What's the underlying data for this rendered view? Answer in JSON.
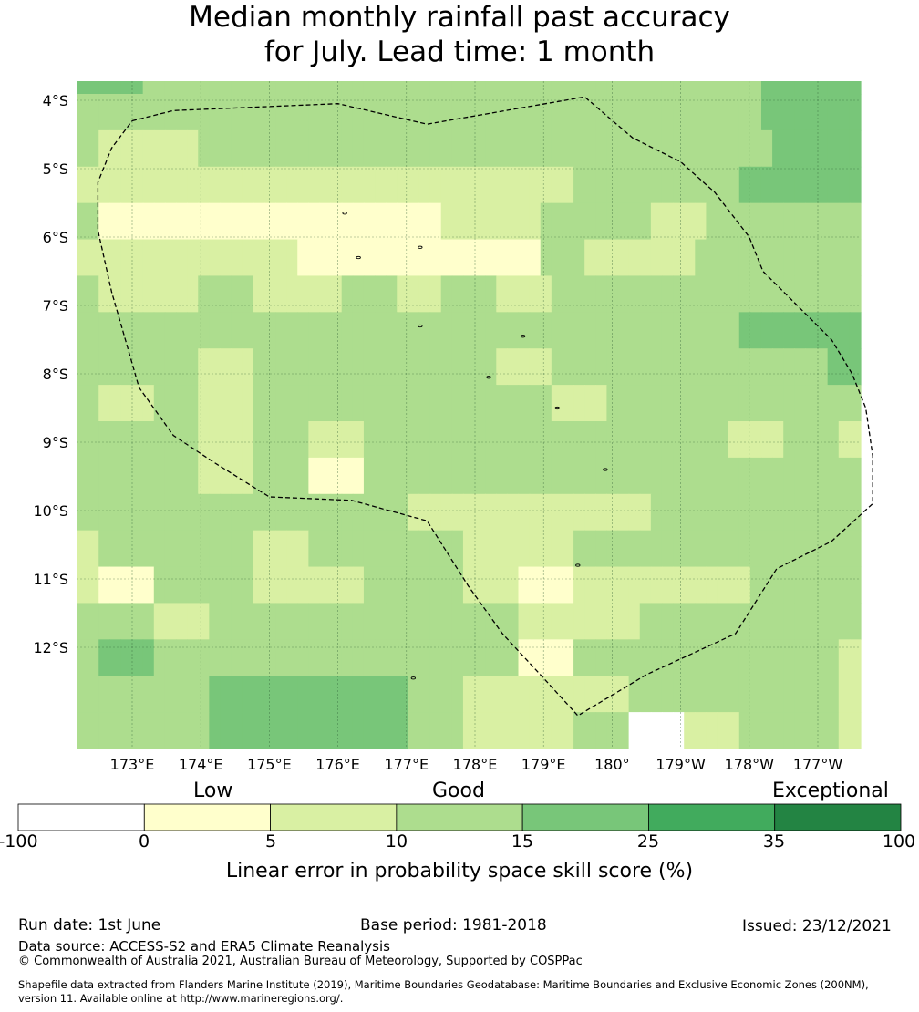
{
  "title": {
    "line1": "Median monthly rainfall past accuracy",
    "line2": "for July. Lead time: 1 month"
  },
  "map": {
    "lat_labels": [
      "4°S",
      "5°S",
      "6°S",
      "7°S",
      "8°S",
      "9°S",
      "10°S",
      "11°S",
      "12°S"
    ],
    "lon_labels": [
      "173°E",
      "174°E",
      "175°E",
      "176°E",
      "177°E",
      "178°E",
      "179°E",
      "180°",
      "179°W",
      "178°W",
      "177°W"
    ],
    "cell_levels": [
      [
        4,
        4,
        4,
        4,
        4,
        4,
        3,
        3,
        3,
        3,
        3,
        3,
        3,
        3,
        3,
        3,
        3,
        3,
        3,
        3,
        3,
        3,
        3,
        3,
        3,
        3,
        3,
        3,
        3,
        3,
        3,
        3,
        3,
        3,
        3,
        3,
        3,
        3,
        3,
        3,
        3,
        3,
        3,
        3,
        3,
        3,
        3,
        3,
        3,
        3,
        3,
        3,
        3,
        3,
        3,
        3,
        3,
        3,
        3,
        3,
        3,
        3,
        4,
        4,
        4,
        4,
        4,
        4,
        4,
        4,
        4
      ],
      [
        3,
        3,
        3,
        3,
        3,
        3,
        3,
        3,
        3,
        3,
        3,
        3,
        3,
        3,
        3,
        3,
        3,
        3,
        3,
        3,
        3,
        3,
        3,
        3,
        3,
        3,
        3,
        3,
        3,
        3,
        3,
        3,
        3,
        3,
        3,
        3,
        3,
        3,
        3,
        3,
        3,
        3,
        3,
        3,
        3,
        3,
        3,
        3,
        3,
        3,
        3,
        3,
        3,
        3,
        3,
        3,
        3,
        3,
        3,
        3,
        3,
        3,
        4,
        4,
        4,
        4,
        4,
        4,
        4,
        4,
        4
      ],
      [
        3,
        3,
        2,
        2,
        2,
        2,
        2,
        2,
        2,
        2,
        2,
        3,
        3,
        3,
        3,
        3,
        3,
        3,
        3,
        3,
        3,
        3,
        3,
        3,
        3,
        3,
        3,
        3,
        3,
        3,
        3,
        3,
        3,
        3,
        3,
        3,
        3,
        3,
        3,
        3,
        3,
        3,
        3,
        3,
        3,
        3,
        3,
        3,
        3,
        3,
        3,
        3,
        3,
        3,
        3,
        3,
        3,
        3,
        3,
        3,
        3,
        3,
        3,
        4,
        4,
        4,
        4,
        4,
        4,
        4,
        4
      ],
      [
        2,
        2,
        2,
        2,
        2,
        2,
        2,
        2,
        2,
        2,
        2,
        2,
        2,
        2,
        2,
        2,
        2,
        2,
        2,
        2,
        2,
        2,
        2,
        2,
        2,
        2,
        2,
        2,
        2,
        2,
        2,
        2,
        2,
        2,
        2,
        2,
        2,
        2,
        2,
        2,
        2,
        2,
        2,
        2,
        2,
        3,
        3,
        3,
        3,
        3,
        3,
        3,
        3,
        3,
        3,
        3,
        3,
        3,
        3,
        3,
        4,
        4,
        4,
        4,
        4,
        4,
        4,
        4,
        4,
        4,
        4
      ],
      [
        3,
        3,
        1,
        1,
        1,
        1,
        1,
        1,
        1,
        1,
        1,
        1,
        1,
        1,
        1,
        1,
        1,
        1,
        1,
        1,
        1,
        1,
        1,
        1,
        1,
        1,
        1,
        1,
        1,
        1,
        1,
        1,
        1,
        2,
        2,
        2,
        2,
        2,
        2,
        2,
        2,
        2,
        3,
        3,
        3,
        3,
        3,
        3,
        3,
        3,
        3,
        3,
        2,
        2,
        2,
        2,
        2,
        3,
        3,
        3,
        3,
        3,
        3,
        3,
        3,
        3,
        3,
        3,
        3,
        3,
        3
      ],
      [
        2,
        2,
        2,
        2,
        2,
        2,
        2,
        2,
        2,
        2,
        2,
        2,
        2,
        2,
        2,
        2,
        2,
        2,
        2,
        2,
        1,
        1,
        1,
        1,
        1,
        1,
        1,
        1,
        1,
        1,
        1,
        1,
        1,
        1,
        1,
        1,
        1,
        1,
        1,
        1,
        1,
        1,
        3,
        3,
        3,
        3,
        2,
        2,
        2,
        2,
        2,
        2,
        2,
        2,
        2,
        2,
        3,
        3,
        3,
        3,
        3,
        3,
        3,
        3,
        3,
        3,
        3,
        3,
        3,
        3,
        3
      ],
      [
        3,
        3,
        2,
        2,
        2,
        2,
        2,
        2,
        2,
        2,
        2,
        3,
        3,
        3,
        3,
        3,
        2,
        2,
        2,
        2,
        2,
        2,
        2,
        2,
        3,
        3,
        3,
        3,
        3,
        2,
        2,
        2,
        2,
        3,
        3,
        3,
        3,
        3,
        2,
        2,
        2,
        2,
        2,
        3,
        3,
        3,
        3,
        3,
        3,
        3,
        3,
        3,
        3,
        3,
        3,
        3,
        3,
        3,
        3,
        3,
        3,
        3,
        3,
        3,
        3,
        3,
        3,
        3,
        3,
        3,
        3
      ],
      [
        3,
        3,
        3,
        3,
        3,
        3,
        3,
        3,
        3,
        3,
        3,
        3,
        3,
        3,
        3,
        3,
        3,
        3,
        3,
        3,
        3,
        3,
        3,
        3,
        3,
        3,
        3,
        3,
        3,
        3,
        3,
        3,
        3,
        3,
        3,
        3,
        3,
        3,
        3,
        3,
        3,
        3,
        3,
        3,
        3,
        3,
        3,
        3,
        3,
        3,
        3,
        3,
        3,
        3,
        3,
        3,
        3,
        3,
        3,
        3,
        4,
        4,
        4,
        4,
        4,
        4,
        4,
        4,
        4,
        4,
        4
      ],
      [
        3,
        3,
        3,
        3,
        3,
        3,
        3,
        3,
        3,
        3,
        3,
        2,
        2,
        2,
        2,
        2,
        3,
        3,
        3,
        3,
        3,
        3,
        3,
        3,
        3,
        3,
        3,
        3,
        3,
        3,
        3,
        3,
        3,
        3,
        3,
        3,
        3,
        3,
        2,
        2,
        2,
        2,
        2,
        3,
        3,
        3,
        3,
        3,
        3,
        3,
        3,
        3,
        3,
        3,
        3,
        3,
        3,
        3,
        3,
        3,
        3,
        3,
        3,
        3,
        3,
        3,
        3,
        3,
        4,
        4,
        4
      ],
      [
        3,
        3,
        2,
        2,
        2,
        2,
        2,
        3,
        3,
        3,
        3,
        2,
        2,
        2,
        2,
        2,
        3,
        3,
        3,
        3,
        3,
        3,
        3,
        3,
        3,
        3,
        3,
        3,
        3,
        3,
        3,
        3,
        3,
        3,
        3,
        3,
        3,
        3,
        3,
        3,
        3,
        3,
        3,
        2,
        2,
        2,
        2,
        2,
        3,
        3,
        3,
        3,
        3,
        3,
        3,
        3,
        3,
        3,
        3,
        3,
        3,
        3,
        3,
        3,
        3,
        3,
        3,
        3,
        3,
        3,
        3
      ],
      [
        3,
        3,
        3,
        3,
        3,
        3,
        3,
        3,
        3,
        3,
        3,
        2,
        2,
        2,
        2,
        2,
        3,
        3,
        3,
        3,
        3,
        2,
        2,
        2,
        2,
        2,
        3,
        3,
        3,
        3,
        3,
        3,
        3,
        3,
        3,
        3,
        3,
        3,
        3,
        3,
        3,
        3,
        3,
        3,
        3,
        3,
        3,
        3,
        3,
        3,
        3,
        3,
        3,
        3,
        3,
        3,
        3,
        3,
        3,
        2,
        2,
        2,
        2,
        2,
        3,
        3,
        3,
        3,
        3,
        2,
        2
      ],
      [
        3,
        3,
        3,
        3,
        3,
        3,
        3,
        3,
        3,
        3,
        3,
        2,
        2,
        2,
        2,
        2,
        3,
        3,
        3,
        3,
        3,
        1,
        1,
        1,
        1,
        1,
        3,
        3,
        3,
        3,
        3,
        3,
        3,
        3,
        3,
        3,
        3,
        3,
        3,
        3,
        3,
        3,
        3,
        3,
        3,
        3,
        3,
        3,
        3,
        3,
        3,
        3,
        3,
        3,
        3,
        3,
        3,
        3,
        3,
        3,
        3,
        3,
        3,
        3,
        3,
        3,
        3,
        3,
        3,
        3,
        3
      ],
      [
        3,
        3,
        3,
        3,
        3,
        3,
        3,
        3,
        3,
        3,
        3,
        3,
        3,
        3,
        3,
        3,
        3,
        3,
        3,
        3,
        3,
        3,
        3,
        3,
        3,
        3,
        3,
        3,
        3,
        3,
        2,
        2,
        2,
        2,
        2,
        2,
        2,
        2,
        2,
        2,
        2,
        2,
        2,
        2,
        2,
        2,
        2,
        2,
        2,
        2,
        2,
        2,
        3,
        3,
        3,
        3,
        3,
        3,
        3,
        3,
        3,
        3,
        3,
        3,
        3,
        3,
        3,
        3,
        3,
        3,
        3
      ],
      [
        2,
        2,
        3,
        3,
        3,
        3,
        3,
        3,
        3,
        3,
        3,
        3,
        3,
        3,
        3,
        3,
        2,
        2,
        2,
        2,
        2,
        3,
        3,
        3,
        3,
        3,
        3,
        3,
        3,
        3,
        3,
        3,
        3,
        3,
        3,
        2,
        2,
        2,
        2,
        2,
        2,
        2,
        2,
        2,
        2,
        3,
        3,
        3,
        3,
        3,
        3,
        3,
        3,
        3,
        3,
        3,
        3,
        3,
        3,
        3,
        3,
        3,
        3,
        3,
        3,
        3,
        3,
        3,
        3,
        3,
        3
      ],
      [
        2,
        2,
        1,
        1,
        1,
        1,
        1,
        3,
        3,
        3,
        3,
        3,
        3,
        3,
        3,
        3,
        2,
        2,
        2,
        2,
        2,
        2,
        2,
        2,
        2,
        2,
        3,
        3,
        3,
        3,
        3,
        3,
        3,
        3,
        3,
        2,
        2,
        2,
        2,
        2,
        1,
        1,
        1,
        1,
        1,
        2,
        2,
        2,
        2,
        2,
        2,
        2,
        2,
        2,
        2,
        2,
        2,
        2,
        2,
        2,
        2,
        3,
        3,
        3,
        3,
        3,
        3,
        3,
        3,
        3,
        3
      ],
      [
        3,
        3,
        3,
        3,
        3,
        3,
        3,
        2,
        2,
        2,
        2,
        2,
        3,
        3,
        3,
        3,
        3,
        3,
        3,
        3,
        3,
        3,
        3,
        3,
        3,
        3,
        3,
        3,
        3,
        3,
        3,
        3,
        3,
        3,
        3,
        3,
        3,
        3,
        3,
        3,
        2,
        2,
        2,
        2,
        2,
        2,
        2,
        2,
        2,
        2,
        2,
        3,
        3,
        3,
        3,
        3,
        3,
        3,
        3,
        3,
        3,
        3,
        3,
        3,
        3,
        3,
        3,
        3,
        3,
        3,
        3
      ],
      [
        3,
        3,
        4,
        4,
        4,
        4,
        4,
        3,
        3,
        3,
        3,
        3,
        3,
        3,
        3,
        3,
        3,
        3,
        3,
        3,
        3,
        3,
        3,
        3,
        3,
        3,
        3,
        3,
        3,
        3,
        3,
        3,
        3,
        3,
        3,
        3,
        3,
        3,
        3,
        3,
        1,
        1,
        1,
        1,
        1,
        3,
        3,
        3,
        3,
        3,
        3,
        3,
        3,
        3,
        3,
        3,
        3,
        3,
        3,
        3,
        3,
        3,
        3,
        3,
        3,
        3,
        3,
        3,
        3,
        2,
        2
      ],
      [
        3,
        3,
        3,
        3,
        3,
        3,
        3,
        3,
        3,
        3,
        3,
        3,
        4,
        4,
        4,
        4,
        4,
        4,
        4,
        4,
        4,
        4,
        4,
        4,
        4,
        4,
        4,
        4,
        4,
        4,
        3,
        3,
        3,
        3,
        3,
        2,
        2,
        2,
        2,
        2,
        2,
        2,
        2,
        2,
        2,
        2,
        2,
        2,
        2,
        2,
        3,
        3,
        3,
        3,
        3,
        3,
        3,
        3,
        3,
        3,
        3,
        3,
        3,
        3,
        3,
        3,
        3,
        3,
        3,
        2,
        2
      ],
      [
        3,
        3,
        3,
        3,
        3,
        3,
        3,
        3,
        3,
        3,
        3,
        3,
        4,
        4,
        4,
        4,
        4,
        4,
        4,
        4,
        4,
        4,
        4,
        4,
        4,
        4,
        4,
        4,
        4,
        4,
        3,
        3,
        3,
        3,
        3,
        2,
        2,
        2,
        2,
        2,
        2,
        2,
        2,
        2,
        2,
        3,
        3,
        3,
        3,
        3,
        0,
        0,
        0,
        0,
        0,
        2,
        2,
        2,
        2,
        2,
        3,
        3,
        3,
        3,
        3,
        3,
        3,
        3,
        3,
        2,
        2
      ]
    ],
    "eez_boundary": [
      [
        173.0,
        -4.3
      ],
      [
        173.6,
        -4.15
      ],
      [
        176.0,
        -4.05
      ],
      [
        177.3,
        -4.35
      ],
      [
        179.6,
        -3.95
      ],
      [
        180.3,
        -4.55
      ],
      [
        181.0,
        -4.9
      ],
      [
        181.5,
        -5.35
      ],
      [
        182.0,
        -6.0
      ],
      [
        182.2,
        -6.5
      ],
      [
        182.7,
        -7.0
      ],
      [
        183.2,
        -7.5
      ],
      [
        183.5,
        -8.0
      ],
      [
        183.7,
        -8.5
      ],
      [
        183.8,
        -9.2
      ],
      [
        183.8,
        -9.9
      ],
      [
        183.2,
        -10.45
      ],
      [
        182.4,
        -10.85
      ],
      [
        181.8,
        -11.8
      ],
      [
        180.5,
        -12.4
      ],
      [
        179.5,
        -13.0
      ],
      [
        179.0,
        -12.45
      ],
      [
        178.4,
        -11.8
      ],
      [
        177.9,
        -11.1
      ],
      [
        177.3,
        -10.15
      ],
      [
        176.2,
        -9.85
      ],
      [
        175.0,
        -9.8
      ],
      [
        174.2,
        -9.3
      ],
      [
        173.6,
        -8.9
      ],
      [
        173.1,
        -8.2
      ],
      [
        172.9,
        -7.5
      ],
      [
        172.7,
        -6.8
      ],
      [
        172.5,
        -5.9
      ],
      [
        172.5,
        -5.2
      ],
      [
        172.7,
        -4.7
      ],
      [
        173.0,
        -4.3
      ]
    ],
    "islands": [
      [
        176.1,
        -5.65
      ],
      [
        176.3,
        -6.3
      ],
      [
        177.2,
        -6.15
      ],
      [
        177.2,
        -7.3
      ],
      [
        178.2,
        -8.05
      ],
      [
        178.7,
        -7.45
      ],
      [
        179.2,
        -8.5
      ],
      [
        179.9,
        -9.4
      ],
      [
        179.5,
        -10.8
      ],
      [
        177.1,
        -12.45
      ]
    ]
  },
  "colorbar": {
    "categories": [
      "Low",
      "Good",
      "Exceptional"
    ],
    "ticks": [
      "-100",
      "0",
      "5",
      "10",
      "15",
      "25",
      "35",
      "100"
    ],
    "colors": [
      "#ffffff",
      "#ffffcc",
      "#d9f0a3",
      "#addd8e",
      "#78c679",
      "#41ab5d",
      "#238443"
    ],
    "title": "Linear error in probability space skill score (%)"
  },
  "footer": {
    "run_date": "Run date: 1st June",
    "base_period": "Base period: 1981-2018",
    "issued": "Issued: 23/12/2021",
    "data_source": "Data source: ACCESS-S2 and ERA5 Climate Reanalysis",
    "copyright": "© Commonwealth of Australia 2021, Australian Bureau of Meteorology, Supported by COSPPac",
    "shapefile_line1": "Shapefile data extracted from Flanders Marine Institute (2019), Maritime Boundaries Geodatabase: Maritime Boundaries and Exclusive Economic Zones (200NM),",
    "shapefile_line2": "version 11. Available online at http://www.marineregions.org/."
  }
}
